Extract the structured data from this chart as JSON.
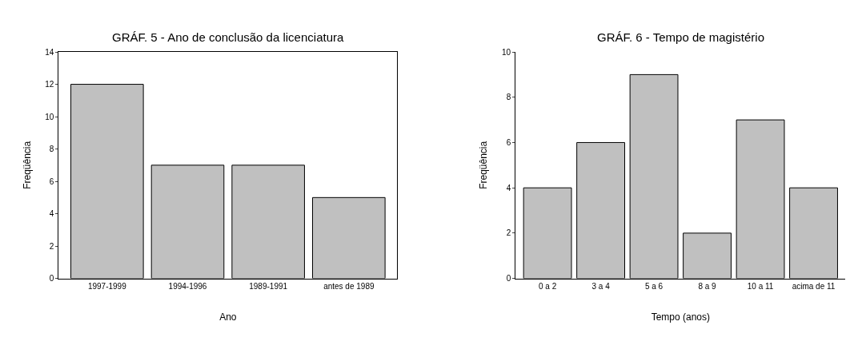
{
  "chart_data": [
    {
      "type": "bar",
      "title": "GRÁF. 5 - Ano de conclusão da licenciatura",
      "xlabel": "Ano",
      "ylabel": "Freqüência",
      "categories": [
        "1997-1999",
        "1994-1996",
        "1989-1991",
        "antes de 1989"
      ],
      "values": [
        12,
        7,
        7,
        5
      ],
      "color": "#c0c0c0",
      "ylim": [
        0,
        14
      ],
      "yticks": [
        0,
        2,
        4,
        6,
        8,
        10,
        12,
        14
      ]
    },
    {
      "type": "bar",
      "title": "GRÁF. 6 - Tempo de magistério",
      "xlabel": "Tempo (anos)",
      "ylabel": "Freqüência",
      "categories": [
        "0 a 2",
        "3 a 4",
        "5 a 6",
        "8 a 9",
        "10 a 11",
        "acima de 11"
      ],
      "values": [
        4,
        6,
        9,
        2,
        7,
        4
      ],
      "color": "#c0c0c0",
      "ylim": [
        0,
        10
      ],
      "yticks": [
        0,
        2,
        4,
        6,
        8,
        10
      ]
    }
  ]
}
